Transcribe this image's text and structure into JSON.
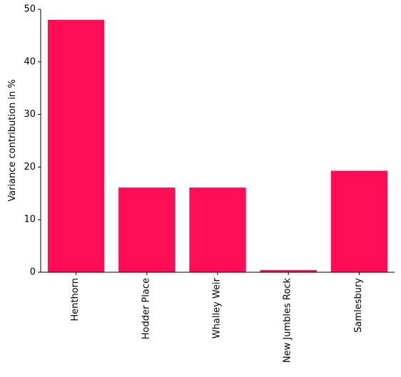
{
  "chart_data": {
    "type": "bar",
    "title": "",
    "xlabel": "",
    "ylabel": "Variance contribution in %",
    "categories": [
      "Henthorn",
      "Hodder Place",
      "Whalley Weir",
      "New Jumbles Rock",
      "Samlesbury"
    ],
    "values": [
      48.0,
      16.1,
      16.1,
      0.4,
      19.3
    ],
    "ylim": [
      0,
      50
    ],
    "yticks": [
      0,
      10,
      20,
      30,
      40,
      50
    ],
    "bar_color": "#ff0e57",
    "grid": false,
    "legend": "none"
  }
}
